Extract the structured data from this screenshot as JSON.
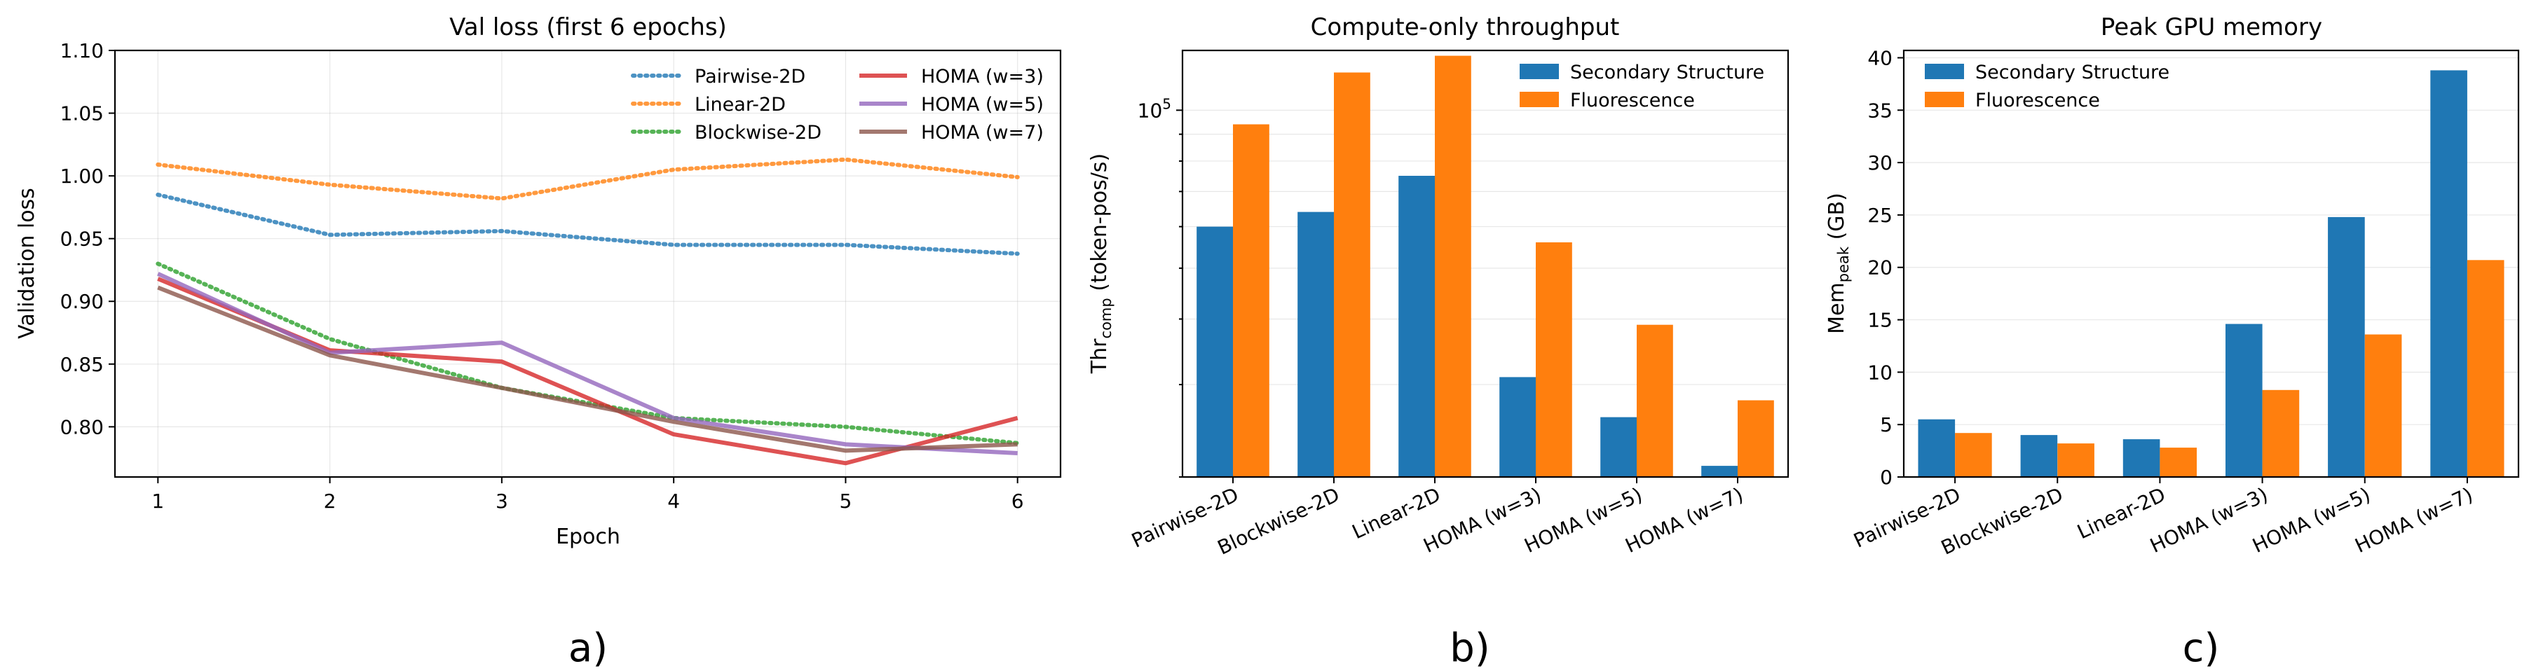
{
  "panel_labels": [
    "a)",
    "b)",
    "c)"
  ],
  "chart_data": [
    {
      "type": "line",
      "title": "Val loss (first 6 epochs)",
      "xlabel": "Epoch",
      "ylabel": "Validation loss",
      "x": [
        1,
        2,
        3,
        4,
        5,
        6
      ],
      "xlim": [
        0.75,
        6.25
      ],
      "ylim": [
        0.76,
        1.1
      ],
      "xticks": [
        1,
        2,
        3,
        4,
        5,
        6
      ],
      "yticks": [
        0.8,
        0.85,
        0.9,
        0.95,
        1.0,
        1.05,
        1.1
      ],
      "ytick_labels": [
        "0.80",
        "0.85",
        "0.90",
        "0.95",
        "1.00",
        "1.05",
        "1.10"
      ],
      "grid": true,
      "legend_position": "top-right",
      "series": [
        {
          "name": "Pairwise-2D",
          "values": [
            0.985,
            0.953,
            0.956,
            0.945,
            0.945,
            0.938
          ],
          "color": "#1f77b4",
          "style": "dotted"
        },
        {
          "name": "Linear-2D",
          "values": [
            1.009,
            0.993,
            0.982,
            1.005,
            1.013,
            0.999
          ],
          "color": "#ff7f0e",
          "style": "dotted"
        },
        {
          "name": "Blockwise-2D",
          "values": [
            0.93,
            0.87,
            0.831,
            0.807,
            0.8,
            0.787
          ],
          "color": "#2ca02c",
          "style": "dotted"
        },
        {
          "name": "HOMA (w=3)",
          "values": [
            0.918,
            0.861,
            0.852,
            0.794,
            0.771,
            0.807
          ],
          "color": "#d62728",
          "style": "solid"
        },
        {
          "name": "HOMA (w=5)",
          "values": [
            0.922,
            0.859,
            0.867,
            0.807,
            0.786,
            0.779
          ],
          "color": "#9467bd",
          "style": "solid"
        },
        {
          "name": "HOMA (w=7)",
          "values": [
            0.911,
            0.857,
            0.831,
            0.804,
            0.781,
            0.786
          ],
          "color": "#8c564b",
          "style": "solid"
        }
      ]
    },
    {
      "type": "bar",
      "title": "Compute-only throughput",
      "ylabel_main": "Thr",
      "ylabel_sub": "comp",
      "ylabel_rest": " (token-pos/s)",
      "yscale": "log",
      "ylim": [
        20000,
        130000
      ],
      "ytick_values": [
        100000
      ],
      "ytick_base": "10",
      "ytick_exp": "5",
      "minor_ticks": [
        20000,
        30000,
        40000,
        50000,
        60000,
        70000,
        80000,
        90000
      ],
      "grid": true,
      "legend_position": "top-right",
      "categories": [
        "Pairwise-2D",
        "Blockwise-2D",
        "Linear-2D",
        "HOMA (w=3)",
        "HOMA (w=5)",
        "HOMA (w=7)"
      ],
      "series": [
        {
          "name": "Secondary Structure",
          "values": [
            60000,
            64000,
            75000,
            31000,
            26000,
            21000
          ],
          "color": "#1f77b4"
        },
        {
          "name": "Fluorescence",
          "values": [
            94000,
            118000,
            127000,
            56000,
            39000,
            28000
          ],
          "color": "#ff7f0e"
        }
      ]
    },
    {
      "type": "bar",
      "title": "Peak GPU memory",
      "ylabel_main": "Mem",
      "ylabel_sub": "peak",
      "ylabel_rest": " (GB)",
      "ylim": [
        0,
        40.7
      ],
      "yticks": [
        0,
        5,
        10,
        15,
        20,
        25,
        30,
        35,
        40
      ],
      "grid": true,
      "legend_position": "top-left",
      "categories": [
        "Pairwise-2D",
        "Blockwise-2D",
        "Linear-2D",
        "HOMA (w=3)",
        "HOMA (w=5)",
        "HOMA (w=7)"
      ],
      "series": [
        {
          "name": "Secondary Structure",
          "values": [
            5.5,
            4.0,
            3.6,
            14.6,
            24.8,
            38.8
          ],
          "color": "#1f77b4"
        },
        {
          "name": "Fluorescence",
          "values": [
            4.2,
            3.2,
            2.8,
            8.3,
            13.6,
            20.7
          ],
          "color": "#ff7f0e"
        }
      ]
    }
  ]
}
